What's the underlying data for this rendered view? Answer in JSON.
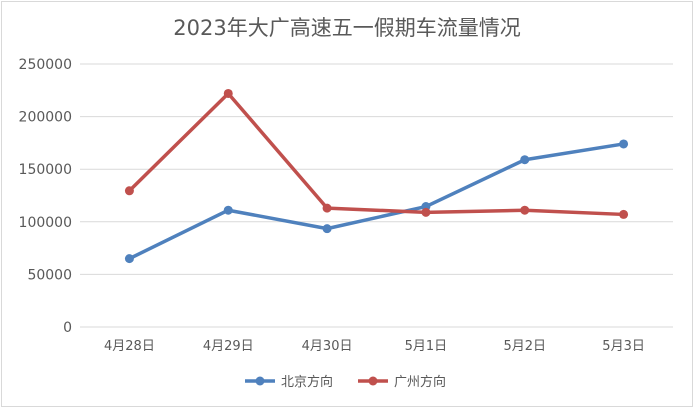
{
  "chart_data": {
    "type": "line",
    "title": "2023年大广高速五一假期车流量情况",
    "categories": [
      "4月28日",
      "4月29日",
      "4月30日",
      "5月1日",
      "5月2日",
      "5月3日"
    ],
    "ylim": [
      0,
      250000
    ],
    "yticks": [
      "0",
      "50000",
      "100000",
      "150000",
      "200000",
      "250000"
    ],
    "grid": true,
    "legend_position": "bottom",
    "series": [
      {
        "name": "北京方向",
        "color": "#4F81BD",
        "values": [
          65000,
          111000,
          93500,
          114500,
          159000,
          174000
        ]
      },
      {
        "name": "广州方向",
        "color": "#C0504D",
        "values": [
          129500,
          222000,
          113000,
          109000,
          111000,
          107000
        ]
      }
    ]
  }
}
